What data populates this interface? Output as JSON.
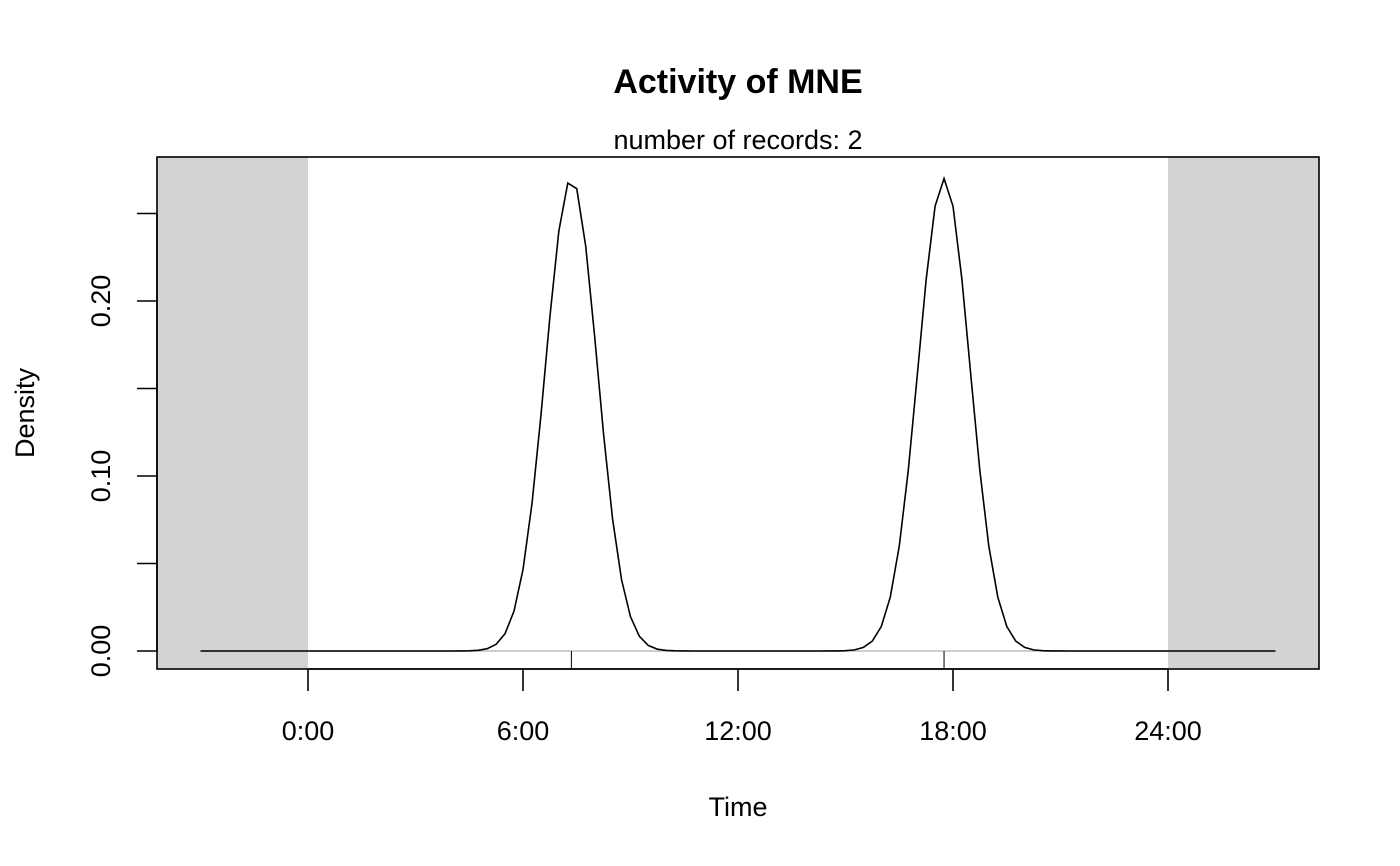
{
  "chart_data": {
    "type": "line",
    "title": "Activity of MNE",
    "subtitle": "number of records: 2",
    "xlabel": "Time",
    "ylabel": "Density",
    "xlim": [
      -4,
      28
    ],
    "ylim": [
      0,
      0.27
    ],
    "x_ticks": [
      {
        "value": 0,
        "label": "0:00"
      },
      {
        "value": 6,
        "label": "6:00"
      },
      {
        "value": 12,
        "label": "12:00"
      },
      {
        "value": 18,
        "label": "18:00"
      },
      {
        "value": 24,
        "label": "24:00"
      }
    ],
    "y_ticks": [
      {
        "value": 0.0,
        "label": "0.00"
      },
      {
        "value": 0.05,
        "label": ""
      },
      {
        "value": 0.1,
        "label": "0.10"
      },
      {
        "value": 0.15,
        "label": ""
      },
      {
        "value": 0.2,
        "label": "0.20"
      },
      {
        "value": 0.25,
        "label": ""
      }
    ],
    "shaded_regions": [
      {
        "from": -4,
        "to": 0,
        "color": "#d3d3d3"
      },
      {
        "from": 24,
        "to": 28,
        "color": "#d3d3d3"
      }
    ],
    "rug": [
      7.35,
      17.75
    ],
    "density_peaks": [
      {
        "center": 7.35,
        "peak": 0.27,
        "sd": 0.72
      },
      {
        "center": 17.75,
        "peak": 0.27,
        "sd": 0.72
      }
    ],
    "density_range": [
      -3,
      27
    ],
    "grid": false,
    "line_color": "#000000",
    "rug_color": "#bebebe"
  }
}
